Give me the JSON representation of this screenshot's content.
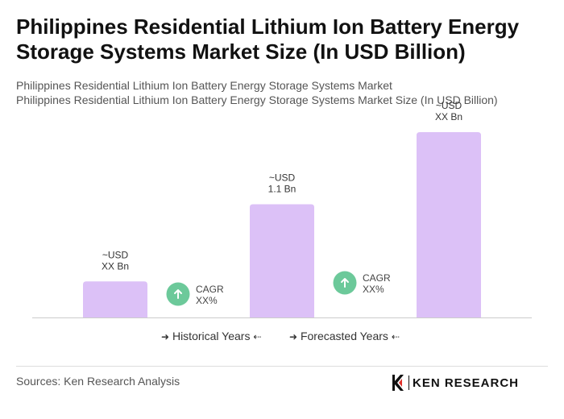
{
  "title": "Philippines Residential Lithium Ion Battery Energy Storage Systems Market Size (In USD Billion)",
  "subtitle_1": "Philippines Residential Lithium Ion Battery Energy Storage Systems Market",
  "subtitle_2": "Philippines Residential Lithium Ion Battery Energy Storage Systems Market Size (In USD Billion)",
  "chart_data": {
    "type": "bar",
    "categories": [
      "",
      "",
      ""
    ],
    "values": [
      0.35,
      1.1,
      1.8
    ],
    "bar_labels": [
      [
        "~USD",
        "XX Bn"
      ],
      [
        "~USD",
        "1.1 Bn"
      ],
      [
        "~USD",
        "XX Bn"
      ]
    ],
    "cagr_badges": [
      [
        "CAGR",
        "XX%"
      ],
      [
        "CAGR",
        "XX%"
      ]
    ],
    "bar_color": "#dcc1f7",
    "badge_color": "#6cc99a",
    "ylim": [
      0,
      1.8
    ],
    "grid": false
  },
  "legend": {
    "historical": "Historical Years",
    "forecasted": "Forecasted Years",
    "arrow_right": "➜",
    "arrow_left": "⇠"
  },
  "sources": "Sources: Ken Research Analysis",
  "logo": {
    "text": "KEN RESEARCH",
    "icon": "ken-research-logo-icon"
  }
}
